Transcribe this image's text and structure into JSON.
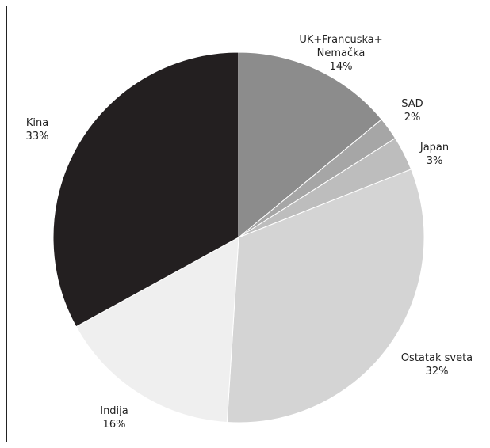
{
  "chart_data": {
    "type": "pie",
    "title": "",
    "slices": [
      {
        "label_lines": [
          "UK+Francuska+",
          "Nemačka"
        ],
        "value": 14,
        "value_label": "14%",
        "color": "#8c8c8c"
      },
      {
        "label_lines": [
          "SAD"
        ],
        "value": 2,
        "value_label": "2%",
        "color": "#a6a6a6"
      },
      {
        "label_lines": [
          "Japan"
        ],
        "value": 3,
        "value_label": "3%",
        "color": "#bdbdbd"
      },
      {
        "label_lines": [
          "Ostatak sveta"
        ],
        "value": 32,
        "value_label": "32%",
        "color": "#d4d4d4"
      },
      {
        "label_lines": [
          "Indija"
        ],
        "value": 16,
        "value_label": "16%",
        "color": "#efefef"
      },
      {
        "label_lines": [
          "Kina"
        ],
        "value": 33,
        "value_label": "33%",
        "color": "#231f20"
      }
    ],
    "legend": "none",
    "start_angle": "12 o'clock",
    "direction": "clockwise"
  }
}
